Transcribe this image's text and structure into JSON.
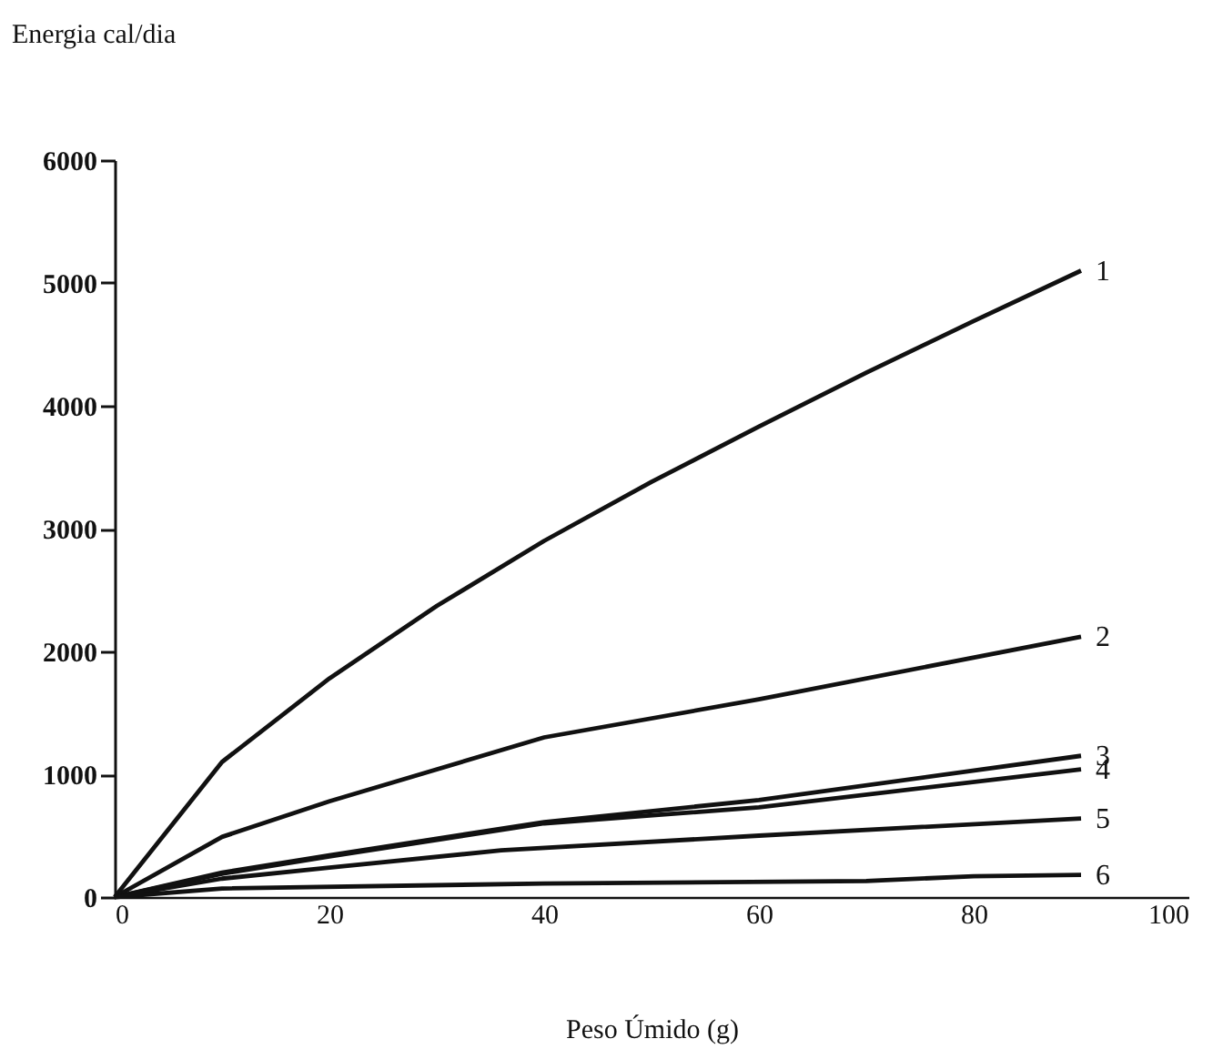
{
  "chart_data": {
    "type": "line",
    "xlabel": "Peso Úmido (g)",
    "ylabel": "Energia cal/dia",
    "xlim": [
      0,
      100
    ],
    "xticks": [
      0,
      20,
      40,
      60,
      80,
      100
    ],
    "ylim": [
      0,
      6000
    ],
    "yticks": [
      0,
      1000,
      2000,
      3000,
      4000,
      5000,
      6000
    ],
    "grid": false,
    "legend": false,
    "series": [
      {
        "name": "1",
        "color": "#111111",
        "x": [
          0,
          10,
          20,
          30,
          40,
          50,
          60,
          70,
          80,
          90
        ],
        "values": [
          0,
          1100,
          1780,
          2370,
          2900,
          3380,
          3830,
          4270,
          4690,
          5100
        ]
      },
      {
        "name": "2",
        "color": "#111111",
        "x": [
          0,
          10,
          20,
          40,
          60,
          90
        ],
        "values": [
          0,
          490,
          780,
          1300,
          1610,
          2120
        ]
      },
      {
        "name": "3",
        "color": "#111111",
        "x": [
          0,
          10,
          20,
          40,
          60,
          90
        ],
        "values": [
          0,
          200,
          340,
          610,
          790,
          1150
        ]
      },
      {
        "name": "4",
        "color": "#111111",
        "x": [
          0,
          10,
          20,
          40,
          60,
          90
        ],
        "values": [
          0,
          190,
          330,
          600,
          730,
          1040
        ]
      },
      {
        "name": "5",
        "color": "#111111",
        "x": [
          0,
          10,
          20,
          36,
          60,
          90
        ],
        "values": [
          0,
          150,
          240,
          380,
          500,
          640
        ]
      },
      {
        "name": "6",
        "color": "#111111",
        "x": [
          0,
          10,
          40,
          70,
          80,
          90
        ],
        "values": [
          0,
          70,
          110,
          130,
          170,
          180
        ]
      }
    ]
  }
}
